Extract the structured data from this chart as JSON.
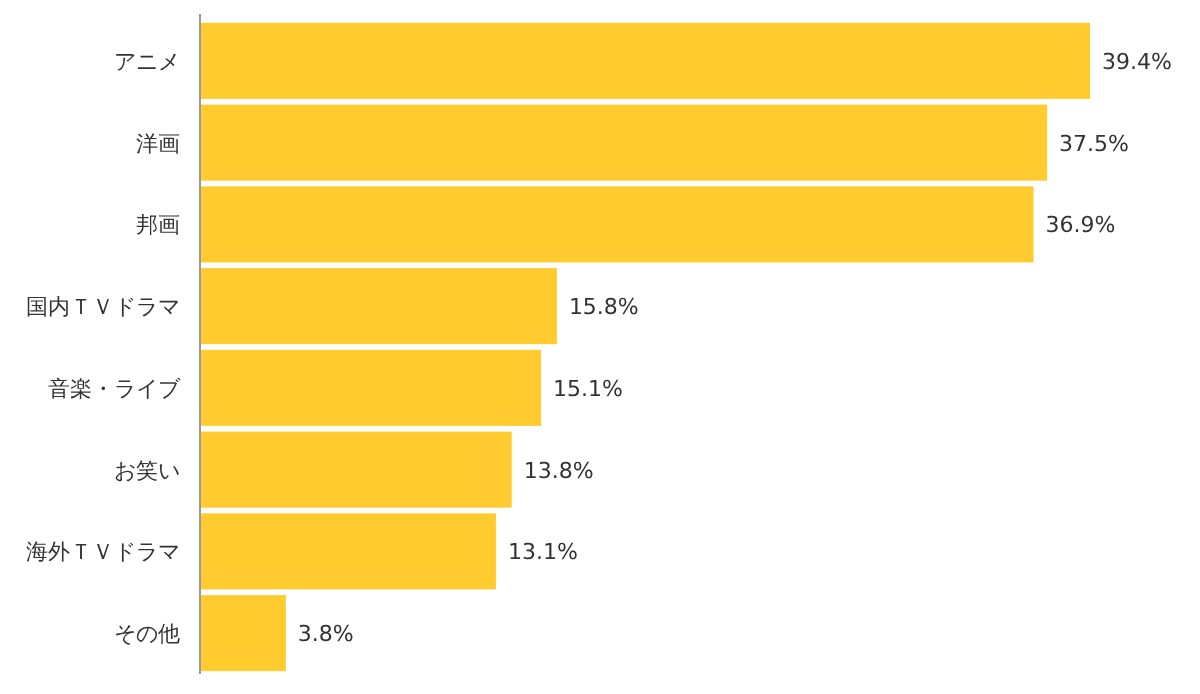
{
  "chart_data": {
    "type": "bar",
    "orientation": "horizontal",
    "categories": [
      "アニメ",
      "洋画",
      "邦画",
      "国内ＴＶドラマ",
      "音楽・ライブ",
      "お笑い",
      "海外ＴＶドラマ",
      "その他"
    ],
    "values": [
      39.4,
      37.5,
      36.9,
      15.8,
      15.1,
      13.8,
      13.1,
      3.8
    ],
    "value_labels": [
      "39.4%",
      "37.5%",
      "36.9%",
      "15.8%",
      "15.1%",
      "13.8%",
      "13.1%",
      "3.8%"
    ],
    "color": "#ffcb2f"
  }
}
